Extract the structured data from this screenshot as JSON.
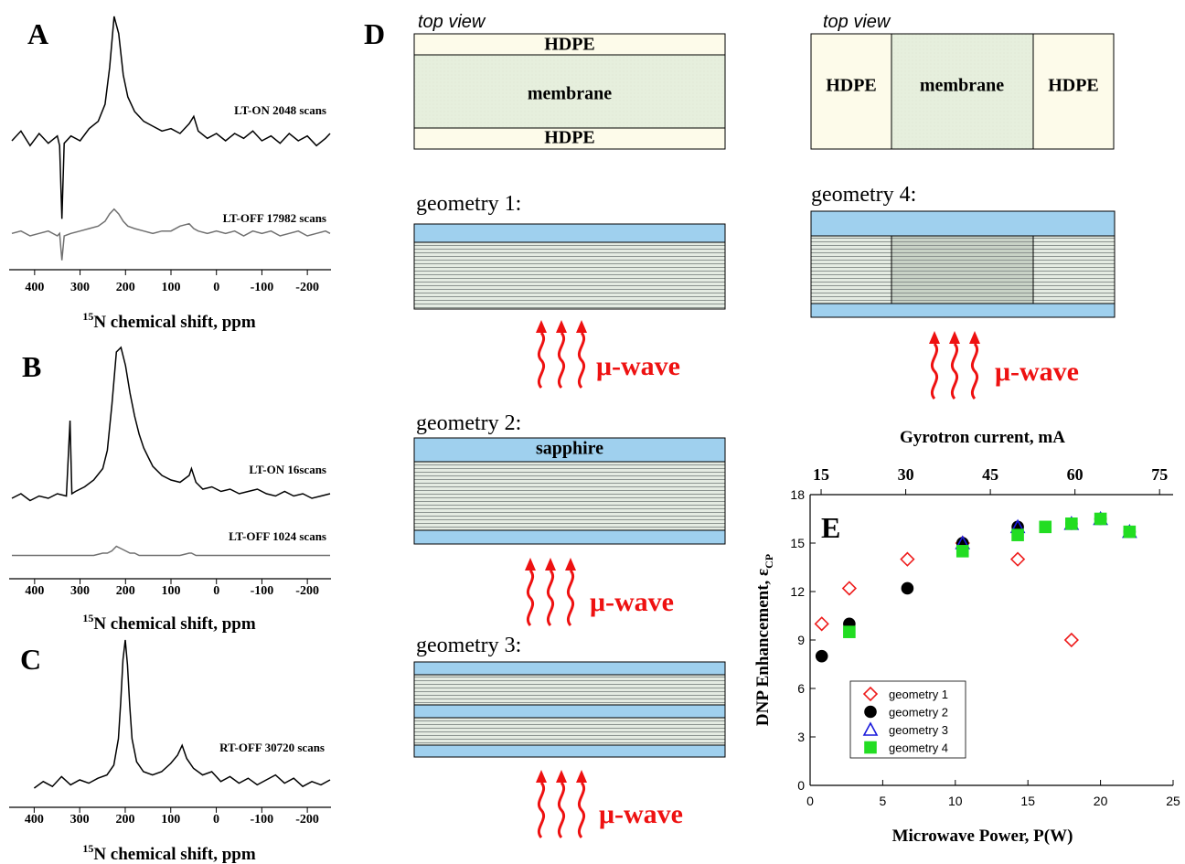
{
  "chart_data": [
    {
      "type": "line",
      "label": "A",
      "x_label_superscript": "15",
      "x_label": "N chemical shift, ppm",
      "xlim": [
        456,
        -252
      ],
      "ylim": [
        -5,
        100
      ],
      "xticks": [
        400,
        300,
        200,
        100,
        0,
        -100,
        -200
      ],
      "x": [
        450,
        430,
        410,
        390,
        370,
        350,
        345,
        340,
        335,
        320,
        300,
        280,
        260,
        245,
        235,
        225,
        215,
        205,
        195,
        180,
        160,
        140,
        120,
        100,
        80,
        60,
        50,
        40,
        20,
        0,
        -20,
        -40,
        -60,
        -80,
        -100,
        -120,
        -140,
        -160,
        -180,
        -200,
        -220,
        -240,
        -250
      ],
      "series": [
        {
          "name": "LT-ON 2048 scans",
          "color": "#000000",
          "values": [
            46,
            50,
            44,
            49,
            45,
            48,
            44,
            14,
            45,
            48,
            46,
            51,
            54,
            61,
            76,
            97,
            90,
            73,
            64,
            58,
            54,
            52,
            50,
            51,
            49,
            53,
            56,
            50,
            47,
            49,
            46,
            49,
            47,
            50,
            46,
            48,
            45,
            49,
            46,
            48,
            44,
            47,
            49
          ]
        },
        {
          "name": "LT-OFF 17982 scans",
          "color": "#707070",
          "values": [
            8,
            9,
            7,
            8,
            9,
            7,
            8,
            -3,
            7,
            8,
            9,
            10,
            11,
            13,
            16,
            18,
            16,
            13,
            11,
            10,
            9,
            8,
            9,
            9,
            11,
            12,
            10,
            9,
            8,
            9,
            8,
            9,
            7,
            9,
            8,
            9,
            7,
            8,
            9,
            7,
            8,
            9,
            8
          ]
        }
      ]
    },
    {
      "type": "line",
      "label": "B",
      "x_label_superscript": "15",
      "x_label": "N chemical shift, ppm",
      "xlim": [
        456,
        -252
      ],
      "ylim": [
        0,
        100
      ],
      "xticks": [
        400,
        300,
        200,
        100,
        0,
        -100,
        -200
      ],
      "x": [
        450,
        430,
        410,
        390,
        370,
        350,
        330,
        322,
        318,
        310,
        290,
        270,
        250,
        240,
        230,
        220,
        210,
        200,
        190,
        180,
        170,
        160,
        150,
        140,
        120,
        100,
        80,
        60,
        55,
        45,
        30,
        10,
        -10,
        -30,
        -50,
        -70,
        -90,
        -110,
        -130,
        -150,
        -170,
        -190,
        -210,
        -230,
        -250
      ],
      "series": [
        {
          "name": "LT-ON 16scans",
          "color": "#000000",
          "values": [
            34,
            36,
            33,
            35,
            34,
            36,
            35,
            68,
            36,
            37,
            39,
            42,
            47,
            55,
            75,
            98,
            100,
            92,
            80,
            70,
            62,
            56,
            52,
            48,
            44,
            42,
            41,
            44,
            47,
            41,
            38,
            39,
            37,
            38,
            36,
            37,
            38,
            36,
            35,
            37,
            35,
            36,
            34,
            35,
            36
          ]
        },
        {
          "name": "LT-OFF 1024 scans",
          "color": "#707070",
          "values": [
            9,
            9,
            9,
            9,
            9,
            9,
            9,
            9,
            9,
            9,
            9,
            9,
            10,
            10,
            11,
            13,
            12,
            11,
            10,
            10,
            9,
            9,
            9,
            9,
            9,
            9,
            9,
            10,
            10,
            9,
            9,
            9,
            9,
            9,
            9,
            9,
            9,
            9,
            9,
            9,
            9,
            9,
            9,
            9,
            9
          ]
        }
      ]
    },
    {
      "type": "line",
      "label": "C",
      "x_label_superscript": "15",
      "x_label": "N chemical shift, ppm",
      "xlim": [
        455,
        -252
      ],
      "ylim": [
        0,
        100
      ],
      "xticks": [
        400,
        300,
        200,
        100,
        0,
        -100,
        -200
      ],
      "x": [
        400,
        380,
        360,
        340,
        320,
        300,
        280,
        260,
        240,
        225,
        215,
        210,
        205,
        200,
        195,
        190,
        185,
        175,
        160,
        140,
        120,
        100,
        85,
        75,
        65,
        50,
        30,
        10,
        -10,
        -30,
        -50,
        -70,
        -90,
        -110,
        -130,
        -150,
        -170,
        -190,
        -210,
        -230,
        -250
      ],
      "series": [
        {
          "name": "RT-OFF 30720 scans",
          "color": "#000000",
          "values": [
            10,
            14,
            11,
            17,
            12,
            15,
            13,
            16,
            18,
            24,
            40,
            62,
            88,
            100,
            85,
            60,
            40,
            26,
            20,
            18,
            20,
            25,
            30,
            36,
            28,
            22,
            18,
            20,
            14,
            17,
            13,
            16,
            12,
            15,
            18,
            13,
            16,
            11,
            14,
            12,
            15
          ]
        }
      ]
    },
    {
      "type": "scatter",
      "label": "E",
      "x_label": "Microwave Power, P(W)",
      "y_label": "DNP Enhancement, ε",
      "y_label_subscript": "CP",
      "x2_label": "Gyrotron current, mA",
      "xlim": [
        0,
        25
      ],
      "xticks": [
        0,
        5,
        10,
        15,
        20,
        25
      ],
      "ylim": [
        0,
        18
      ],
      "yticks": [
        0,
        3,
        6,
        9,
        12,
        15,
        18
      ],
      "x2lim": [
        13.05,
        77.4
      ],
      "x2ticks": [
        15,
        30,
        45,
        60,
        75
      ],
      "series": [
        {
          "name": "geometry 1",
          "color": "#ee1c1c",
          "marker": "diamond",
          "filled": false,
          "x": [
            0.8,
            2.7,
            6.7,
            10.5,
            14.3,
            18
          ],
          "values": [
            10,
            12.2,
            14,
            15,
            14,
            9
          ]
        },
        {
          "name": "geometry 2",
          "color": "#000000",
          "marker": "circle",
          "filled": true,
          "x": [
            0.8,
            2.7,
            6.7,
            10.5,
            14.3,
            18,
            20,
            22
          ],
          "values": [
            8,
            10,
            12.2,
            15,
            16,
            16.2,
            16.5,
            15.7
          ]
        },
        {
          "name": "geometry 3",
          "color": "#1a1adc",
          "marker": "triangle",
          "filled": false,
          "x": [
            10.5,
            14.3,
            18,
            20,
            22
          ],
          "values": [
            15,
            16,
            16.2,
            16.5,
            15.7
          ]
        },
        {
          "name": "geometry 4",
          "color": "#22dd22",
          "marker": "square",
          "filled": true,
          "x": [
            2.7,
            10.5,
            14.3,
            16.2,
            18,
            20,
            22
          ],
          "values": [
            9.5,
            14.5,
            15.5,
            16,
            16.2,
            16.5,
            15.7
          ]
        }
      ]
    }
  ],
  "diagram": {
    "label": "D",
    "top_views": [
      {
        "caption": "top view",
        "parts": [
          "HDPE",
          "membrane",
          "HDPE"
        ]
      },
      {
        "caption": "top view",
        "parts": [
          "HDPE",
          "membrane",
          "HDPE"
        ]
      }
    ],
    "geometries": [
      {
        "label": "geometry 1:",
        "wave": "μ-wave"
      },
      {
        "label": "geometry 2:",
        "window": "sapphire",
        "wave": "μ-wave"
      },
      {
        "label": "geometry 3:",
        "wave": "μ-wave"
      },
      {
        "label": "geometry 4:",
        "wave": "μ-wave"
      }
    ]
  }
}
